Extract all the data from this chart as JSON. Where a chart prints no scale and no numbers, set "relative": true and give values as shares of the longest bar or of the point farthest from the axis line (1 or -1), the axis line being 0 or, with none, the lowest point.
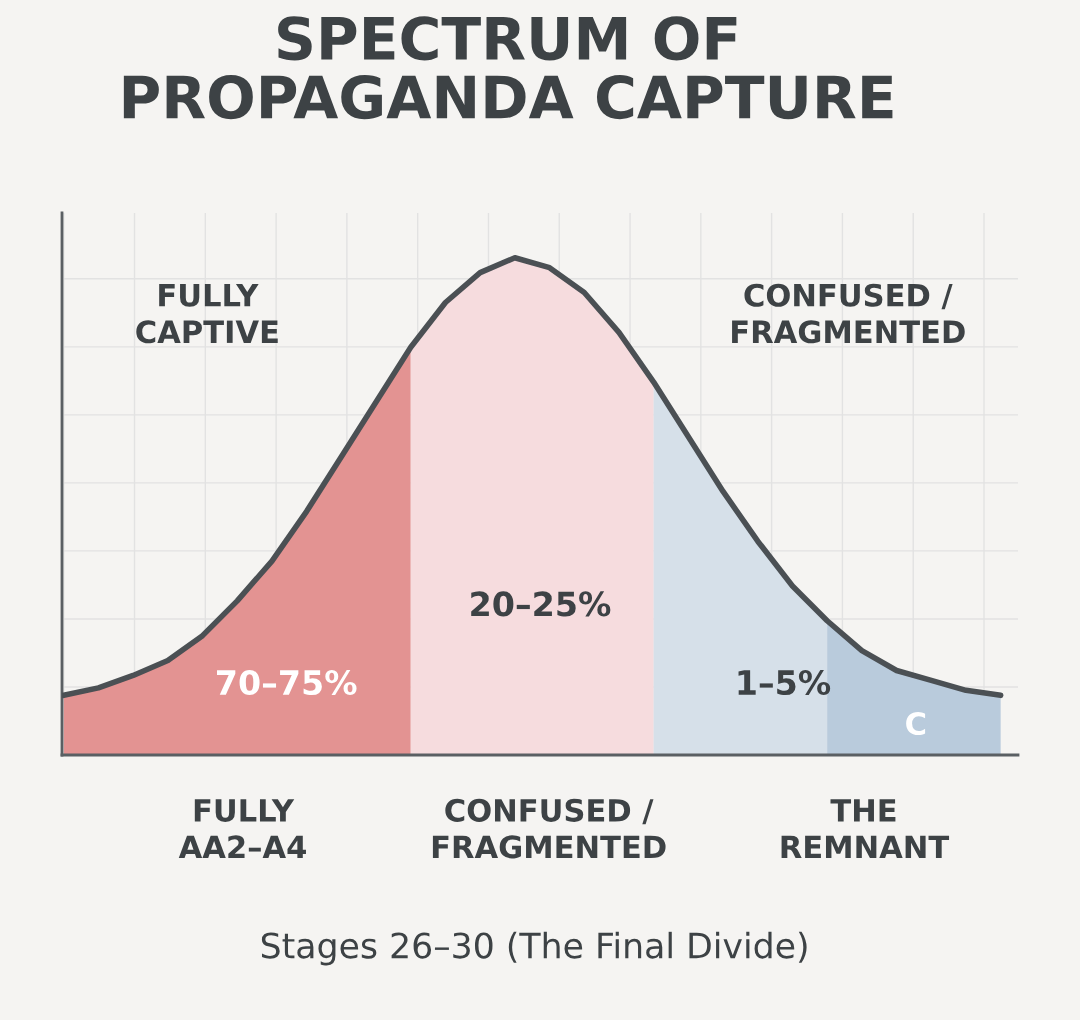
{
  "chart_data": {
    "type": "area",
    "title": "SPECTRUM OF\nPROPAGANDA CAPTURE",
    "relative": true,
    "grid": true,
    "categories": [
      null,
      null,
      null,
      null,
      null,
      null,
      null,
      null,
      null,
      null,
      null,
      null,
      null,
      null,
      null,
      null,
      null,
      null,
      null,
      null,
      null,
      null,
      null,
      null,
      null,
      null,
      null,
      null
    ],
    "series": [
      {
        "color": "#e39392",
        "values": [
          0.12,
          0.135,
          0.16,
          0.19,
          0.24,
          0.31,
          0.39,
          0.49,
          0.6,
          0.71,
          0.82,
          null,
          null,
          null,
          null,
          null,
          null,
          null,
          null,
          null,
          null,
          null,
          null,
          null,
          null,
          null,
          null,
          null
        ]
      },
      {
        "color": "#f6dcde",
        "values": [
          null,
          null,
          null,
          null,
          null,
          null,
          null,
          null,
          null,
          null,
          0.82,
          0.91,
          0.97,
          1.0,
          0.98,
          0.93,
          0.85,
          0.75,
          null,
          null,
          null,
          null,
          null,
          null,
          null,
          null,
          null,
          null
        ]
      },
      {
        "color": "#d6e0e9",
        "values": [
          null,
          null,
          null,
          null,
          null,
          null,
          null,
          null,
          null,
          null,
          null,
          null,
          null,
          null,
          null,
          null,
          null,
          0.75,
          0.64,
          0.53,
          0.43,
          0.34,
          0.27,
          null,
          null,
          null,
          null,
          null
        ]
      },
      {
        "color": "#b9cbdc",
        "values": [
          null,
          null,
          null,
          null,
          null,
          null,
          null,
          null,
          null,
          null,
          null,
          null,
          null,
          null,
          null,
          null,
          null,
          null,
          null,
          null,
          null,
          null,
          0.27,
          0.21,
          0.17,
          0.15,
          0.13,
          0.12
        ]
      },
      {
        "type": "line",
        "color": "#4b5054",
        "values": [
          0.12,
          0.135,
          0.16,
          0.19,
          0.24,
          0.31,
          0.39,
          0.49,
          0.6,
          0.71,
          0.82,
          0.91,
          0.97,
          1.0,
          0.98,
          0.93,
          0.85,
          0.75,
          0.64,
          0.53,
          0.43,
          0.34,
          0.27,
          0.21,
          0.17,
          0.15,
          0.13,
          0.12
        ]
      }
    ],
    "annotations": [
      "FULLY\nCAPTIVE",
      "CONFUSED /\nFRAGMENTED",
      "70–75%",
      "20–25%",
      "1–5%",
      "C",
      "FULLY\nAA2–A4",
      "CONFUSED /\nFRAGMENTED",
      "THE\nREMNANT",
      "Stages 26–30 (The Final Divide)"
    ]
  }
}
